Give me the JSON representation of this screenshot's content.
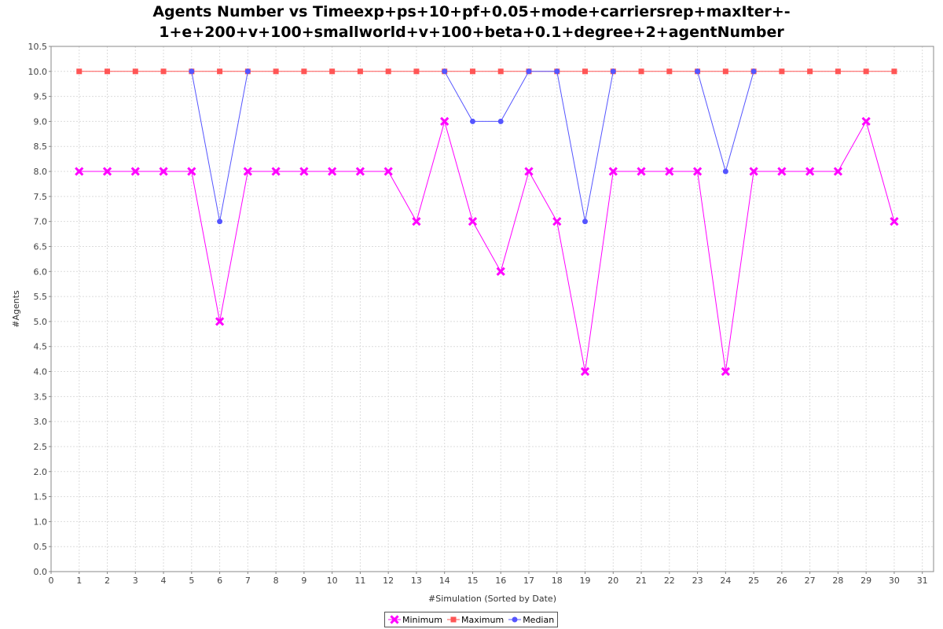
{
  "chart_data": {
    "type": "line",
    "title_lines": [
      "Agents Number vs Timeexp+ps+10+pf+0.05+mode+carriersrep+maxIter+-",
      "1+e+200+v+100+smallworld+v+100+beta+0.1+degree+2+agentNumber"
    ],
    "xlabel": "#Simulation (Sorted by Date)",
    "ylabel": "#Agents",
    "xlim": [
      0,
      31.4
    ],
    "ylim": [
      0,
      10.5
    ],
    "x_ticks": [
      0,
      1,
      2,
      3,
      4,
      5,
      6,
      7,
      8,
      9,
      10,
      11,
      12,
      13,
      14,
      15,
      16,
      17,
      18,
      19,
      20,
      21,
      22,
      23,
      24,
      25,
      26,
      27,
      28,
      29,
      30,
      31
    ],
    "y_ticks": [
      "0.0",
      "0.5",
      "1.0",
      "1.5",
      "2.0",
      "2.5",
      "3.0",
      "3.5",
      "4.0",
      "4.5",
      "5.0",
      "5.5",
      "6.0",
      "6.5",
      "7.0",
      "7.5",
      "8.0",
      "8.5",
      "9.0",
      "9.5",
      "10.0",
      "10.5"
    ],
    "grid": true,
    "legend_position": "bottom-center",
    "x": [
      1,
      2,
      3,
      4,
      5,
      6,
      7,
      8,
      9,
      10,
      11,
      12,
      13,
      14,
      15,
      16,
      17,
      18,
      19,
      20,
      21,
      22,
      23,
      24,
      25,
      26,
      27,
      28,
      29,
      30
    ],
    "series": [
      {
        "name": "Minimum",
        "color": "#ff00ff",
        "marker": "x",
        "values": [
          8,
          8,
          8,
          8,
          8,
          5,
          8,
          8,
          8,
          8,
          8,
          8,
          7,
          9,
          7,
          6,
          8,
          7,
          4,
          8,
          8,
          8,
          8,
          4,
          8,
          8,
          8,
          8,
          9,
          7
        ]
      },
      {
        "name": "Maximum",
        "color": "#ff5555",
        "marker": "square",
        "values": [
          10,
          10,
          10,
          10,
          10,
          10,
          10,
          10,
          10,
          10,
          10,
          10,
          10,
          10,
          10,
          10,
          10,
          10,
          10,
          10,
          10,
          10,
          10,
          10,
          10,
          10,
          10,
          10,
          10,
          10
        ]
      },
      {
        "name": "Median",
        "color": "#5555ff",
        "marker": "circle",
        "values": [
          null,
          null,
          null,
          null,
          10,
          7,
          10,
          null,
          null,
          null,
          null,
          null,
          null,
          10,
          9,
          9,
          10,
          10,
          7,
          10,
          null,
          null,
          10,
          8,
          10,
          null,
          null,
          null,
          null,
          null
        ]
      }
    ]
  }
}
